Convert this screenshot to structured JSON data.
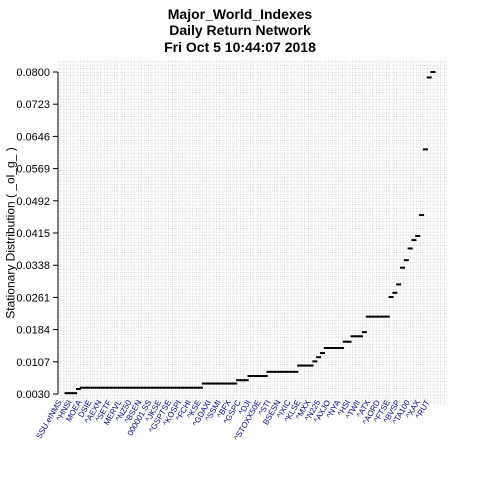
{
  "chart_data": {
    "type": "scatter",
    "title": [
      "Major_World_Indexes",
      "Daily Return Network",
      "Fri Oct  5 10:44:07 2018"
    ],
    "xlabel": "",
    "ylabel": "Stationary Distribution ( _ol_g_ )",
    "y_ticks": [
      "0.0030",
      "0.0107",
      "0.0184",
      "0.0261",
      "0.0338",
      "0.0415",
      "0.0492",
      "0.0569",
      "0.0646",
      "0.0723",
      "0.0800"
    ],
    "ylim": [
      0.003,
      0.08
    ],
    "grid": true,
    "marker": "short horizontal dash",
    "label_color": "#00008b",
    "grid_color": "#c8c8c8",
    "x_tick_labels": [
      "SSU.eINMS",
      "^HNSI",
      "MOEA",
      "DSIE",
      "^AEXN",
      "^SETF",
      "MERVL",
      "^NZ50",
      "^BSEN",
      "000001.SS",
      "^JKSE",
      "^GSPTSE",
      "^KOSPI",
      "^FCHI",
      "^KSE",
      "^GDAXI",
      "^SSMI",
      "^BFX",
      "^GSPC",
      "^DJI",
      "^STOXX50E",
      "^STI",
      "BSESN",
      "^IXIC",
      "^KLSE",
      "^MXX",
      "^N225",
      "^AXJO",
      "^NYA",
      "^HSI",
      "^TWII",
      "^ATX",
      "^AORD",
      "^FTSE",
      "^BVSP",
      "^TA100",
      "^XAX",
      "^RUT"
    ],
    "y": [
      0.0032,
      0.0032,
      0.0032,
      0.0042,
      0.0045,
      0.0045,
      0.0045,
      0.0045,
      0.0045,
      0.0045,
      0.0045,
      0.0045,
      0.0045,
      0.0045,
      0.0045,
      0.0045,
      0.0045,
      0.0045,
      0.0045,
      0.0045,
      0.0045,
      0.0045,
      0.0045,
      0.0045,
      0.0045,
      0.0045,
      0.0045,
      0.0045,
      0.0045,
      0.0045,
      0.0045,
      0.0045,
      0.0045,
      0.0045,
      0.0045,
      0.0045,
      0.0055,
      0.0055,
      0.0055,
      0.0055,
      0.0055,
      0.0055,
      0.0055,
      0.0055,
      0.0055,
      0.0063,
      0.0063,
      0.0063,
      0.0073,
      0.0073,
      0.0073,
      0.0073,
      0.0073,
      0.0083,
      0.0083,
      0.0083,
      0.0083,
      0.0083,
      0.0083,
      0.0083,
      0.0083,
      0.0098,
      0.0098,
      0.0098,
      0.0098,
      0.0108,
      0.0118,
      0.0128,
      0.014,
      0.014,
      0.014,
      0.014,
      0.014,
      0.0155,
      0.0155,
      0.0168,
      0.0168,
      0.0168,
      0.0178,
      0.0215,
      0.0215,
      0.0215,
      0.0215,
      0.0215,
      0.0215,
      0.0262,
      0.0272,
      0.0292,
      0.0332,
      0.035,
      0.0378,
      0.0398,
      0.0408,
      0.0458,
      0.0615,
      0.0787,
      0.08
    ]
  }
}
